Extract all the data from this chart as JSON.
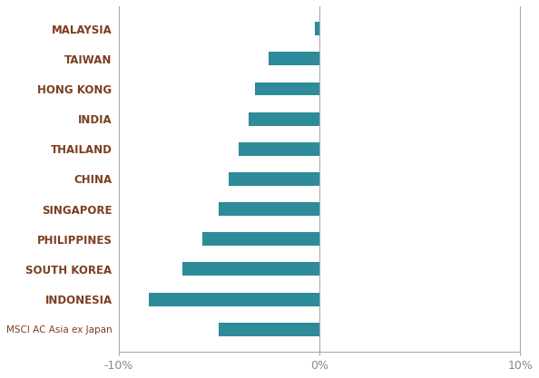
{
  "categories": [
    "MSCI AC Asia ex Japan",
    "INDONESIA",
    "SOUTH KOREA",
    "PHILIPPINES",
    "SINGAPORE",
    "CHINA",
    "THAILAND",
    "INDIA",
    "HONG KONG",
    "TAIWAN",
    "MALAYSIA"
  ],
  "values": [
    -5.0,
    -8.5,
    -6.8,
    -5.8,
    -5.0,
    -4.5,
    -4.0,
    -3.5,
    -3.2,
    -2.5,
    -0.2
  ],
  "bar_color": "#2e8b9a",
  "label_color": "#7B3F20",
  "xlim": [
    -10,
    10
  ],
  "xticks": [
    -10,
    0,
    10
  ],
  "xtick_labels": [
    "-10%",
    "0%",
    "10%"
  ],
  "background_color": "#ffffff",
  "bar_height": 0.45,
  "figsize": [
    5.94,
    4.17
  ],
  "dpi": 100
}
